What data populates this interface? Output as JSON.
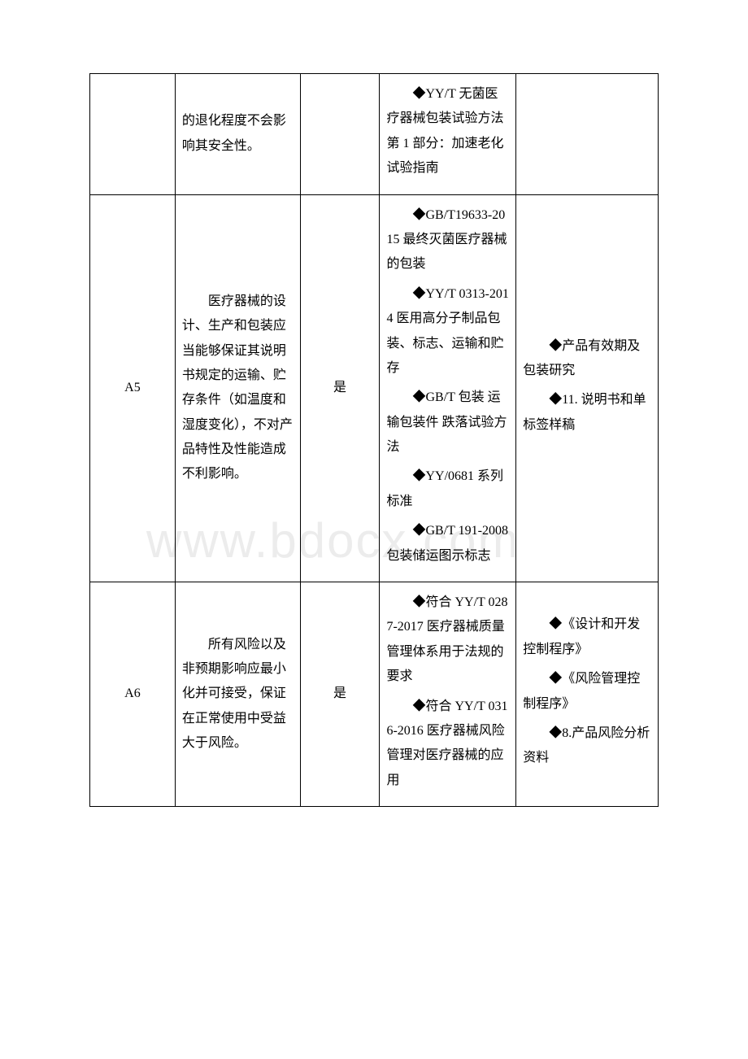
{
  "watermark": "www.bdocx.com",
  "rows": [
    {
      "id": "",
      "col2": "的退化程度不会影响其安全性。",
      "col3": "",
      "col4_items": [
        "　　◆YY/T 无菌医疗器械包装试验方法 第 1 部分：加速老化试验指南"
      ],
      "col5": ""
    },
    {
      "id": "A5",
      "col2": "　　医疗器械的设计、生产和包装应当能够保证其说明书规定的运输、贮存条件（如温度和湿度变化），不对产品特性及性能造成不利影响。",
      "col3": "是",
      "col4_items": [
        "　　◆GB/T19633-2015 最终灭菌医疗器械的包装",
        "　　◆YY/T 0313-2014 医用高分子制品包装、标志、运输和贮存",
        "　　◆GB/T 包装 运输包装件 跌落试验方法",
        "　　◆YY/0681 系列标准",
        "　　◆GB/T 191-2008 包装储运图示标志"
      ],
      "col5_items": [
        "　　◆产品有效期及包装研究",
        "　　◆11. 说明书和单标签样稿"
      ]
    },
    {
      "id": "A6",
      "col2": "　　所有风险以及非预期影响应最小化并可接受，保证在正常使用中受益大于风险。",
      "col3": "是",
      "col4_items": [
        "　　◆符合 YY/T 0287-2017 医疗器械质量管理体系用于法规的要求",
        "　　◆符合 YY/T 0316-2016 医疗器械风险管理对医疗器械的应用"
      ],
      "col5_items": [
        "　　◆《设计和开发控制程序》",
        "　　◆《风险管理控制程序》",
        "　　◆8.产品风险分析资料"
      ]
    }
  ]
}
